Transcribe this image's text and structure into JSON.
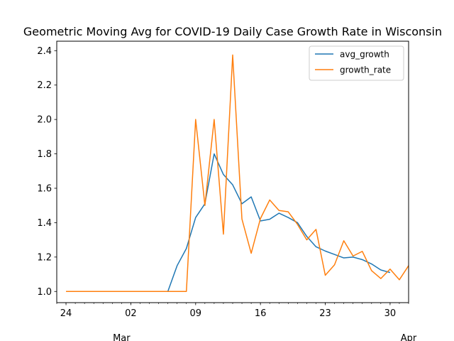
{
  "chart_data": {
    "type": "line",
    "title": "Geometric Moving Avg for COVID-19 Daily Case Growth Rate in Wisconsin",
    "xlabel": "",
    "ylabel": "",
    "x": [
      "2020-02-24",
      "2020-02-25",
      "2020-02-26",
      "2020-02-27",
      "2020-02-28",
      "2020-02-29",
      "2020-03-01",
      "2020-03-02",
      "2020-03-03",
      "2020-03-04",
      "2020-03-05",
      "2020-03-06",
      "2020-03-07",
      "2020-03-08",
      "2020-03-09",
      "2020-03-10",
      "2020-03-11",
      "2020-03-12",
      "2020-03-13",
      "2020-03-14",
      "2020-03-15",
      "2020-03-16",
      "2020-03-17",
      "2020-03-18",
      "2020-03-19",
      "2020-03-20",
      "2020-03-21",
      "2020-03-22",
      "2020-03-23",
      "2020-03-24",
      "2020-03-25",
      "2020-03-26",
      "2020-03-27",
      "2020-03-28",
      "2020-03-29",
      "2020-03-30",
      "2020-03-31",
      "2020-04-01"
    ],
    "xlim": [
      "2020-02-23",
      "2020-04-01"
    ],
    "ylim": [
      0.935,
      2.455
    ],
    "x_ticks_major": [
      {
        "date": "2020-02-24",
        "label": "24"
      },
      {
        "date": "2020-03-02",
        "label": "02"
      },
      {
        "date": "2020-03-09",
        "label": "09"
      },
      {
        "date": "2020-03-16",
        "label": "16"
      },
      {
        "date": "2020-03-23",
        "label": "23"
      },
      {
        "date": "2020-03-30",
        "label": "30"
      }
    ],
    "x_ticks_secondary": [
      {
        "date": "2020-03-01",
        "label": "Mar"
      },
      {
        "date": "2020-04-01",
        "label": "Apr"
      }
    ],
    "y_ticks": [
      1.0,
      1.2,
      1.4,
      1.6,
      1.8,
      2.0,
      2.2,
      2.4
    ],
    "y_tick_labels": [
      "1.0",
      "1.2",
      "1.4",
      "1.6",
      "1.8",
      "2.0",
      "2.2",
      "2.4"
    ],
    "grid": false,
    "legend_position": "top-right",
    "series": [
      {
        "name": "avg_growth",
        "color": "#1f77b4",
        "values": [
          null,
          null,
          1.0,
          1.0,
          1.0,
          1.0,
          1.0,
          1.0,
          1.0,
          1.0,
          1.0,
          1.0,
          1.15,
          1.25,
          1.43,
          1.51,
          1.8,
          1.68,
          1.62,
          1.51,
          1.55,
          1.41,
          1.42,
          1.455,
          1.43,
          1.4,
          1.32,
          1.26,
          1.235,
          1.215,
          1.195,
          1.2,
          1.185,
          1.16,
          1.125,
          1.11,
          null,
          null
        ]
      },
      {
        "name": "growth_rate",
        "color": "#ff7f0e",
        "values": [
          1.0,
          1.0,
          1.0,
          1.0,
          1.0,
          1.0,
          1.0,
          1.0,
          1.0,
          1.0,
          1.0,
          1.0,
          1.0,
          1.0,
          2.0,
          1.5,
          2.0,
          1.333,
          2.375,
          1.421,
          1.222,
          1.424,
          1.532,
          1.471,
          1.463,
          1.39,
          1.3,
          1.361,
          1.094,
          1.155,
          1.295,
          1.206,
          1.233,
          1.121,
          1.075,
          1.13,
          1.068,
          1.15
        ]
      }
    ]
  }
}
